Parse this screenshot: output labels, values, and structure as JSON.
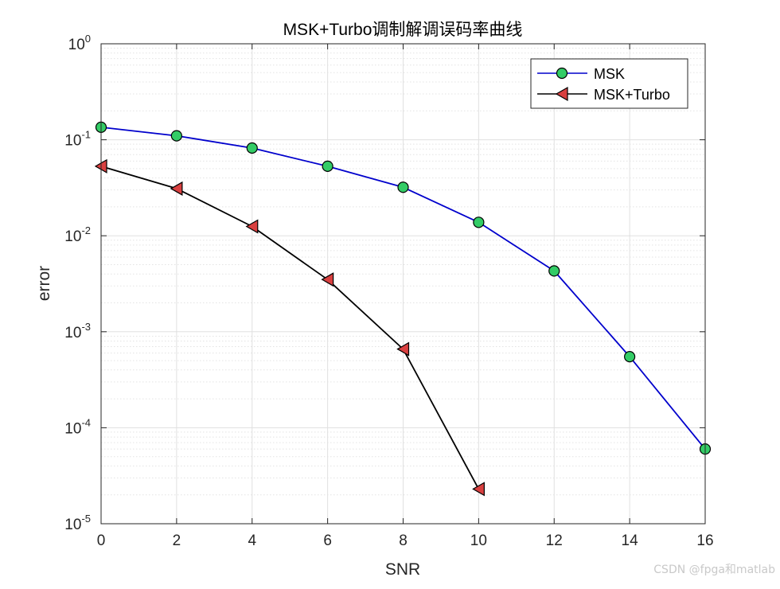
{
  "chart_data": {
    "type": "line",
    "title": "MSK+Turbo调制解调误码率曲线",
    "xlabel": "SNR",
    "ylabel": "error",
    "xlim": [
      0,
      16
    ],
    "ylim": [
      1e-05,
      1
    ],
    "yscale": "log",
    "grid": true,
    "minor_grid": true,
    "legend_position": "top-right",
    "x_ticks": [
      0,
      2,
      4,
      6,
      8,
      10,
      12,
      14,
      16
    ],
    "x_tick_labels": [
      "0",
      "2",
      "4",
      "6",
      "8",
      "10",
      "12",
      "14",
      "16"
    ],
    "y_ticks": [
      {
        "value": 1e-05,
        "base": "10",
        "exp": "-5"
      },
      {
        "value": 0.0001,
        "base": "10",
        "exp": "-4"
      },
      {
        "value": 0.001,
        "base": "10",
        "exp": "-3"
      },
      {
        "value": 0.01,
        "base": "10",
        "exp": "-2"
      },
      {
        "value": 0.1,
        "base": "10",
        "exp": "-1"
      },
      {
        "value": 1,
        "base": "10",
        "exp": "0"
      }
    ],
    "series": [
      {
        "name": "MSK",
        "line_color": "#0000cc",
        "marker": "circle",
        "marker_fill": "#33cc66",
        "x": [
          0,
          2,
          4,
          6,
          8,
          10,
          12,
          14,
          16
        ],
        "y": [
          0.135,
          0.11,
          0.082,
          0.053,
          0.032,
          0.0138,
          0.0043,
          0.00055,
          6e-05
        ]
      },
      {
        "name": "MSK+Turbo",
        "line_color": "#000000",
        "marker": "triangle-left",
        "marker_fill": "#d94040",
        "x": [
          0,
          2,
          4,
          6,
          8,
          10
        ],
        "y": [
          0.053,
          0.031,
          0.0125,
          0.0035,
          0.00066,
          2.3e-05
        ]
      }
    ]
  },
  "watermark": "CSDN @fpga和matlab"
}
